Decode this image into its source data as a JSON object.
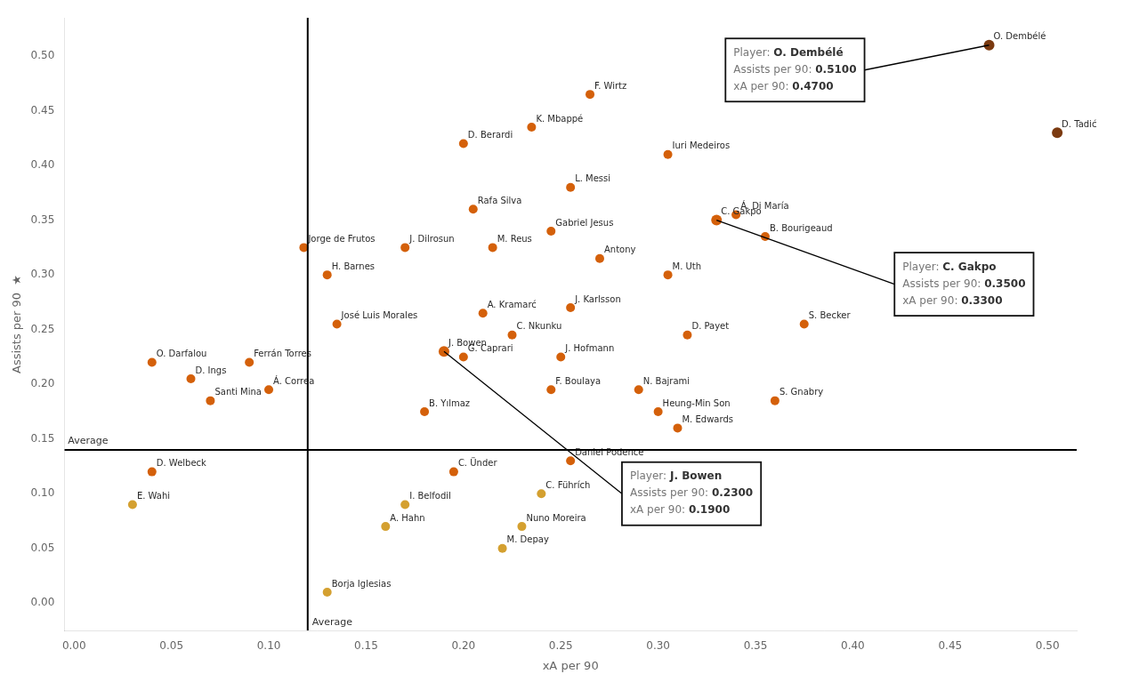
{
  "chart_data": {
    "type": "scatter",
    "xlabel": "xA per 90",
    "ylabel": "Assists per 90  ★",
    "xlim": [
      -0.005,
      0.515
    ],
    "ylim": [
      -0.025,
      0.535
    ],
    "xticks": [
      {
        "value": 0.0,
        "label": "0.00"
      },
      0.05,
      {
        "value": 0.1,
        "label": "0.10"
      },
      0.15,
      {
        "value": 0.2,
        "label": "0.20"
      },
      0.25,
      {
        "value": 0.3,
        "label": "0.30"
      },
      0.35,
      {
        "value": 0.4,
        "label": "0.40"
      },
      0.45,
      {
        "value": 0.5,
        "label": "0.50"
      }
    ],
    "yticks": [
      {
        "value": 0.0,
        "label": "0.00"
      },
      0.05,
      {
        "value": 0.1,
        "label": "0.10"
      },
      0.15,
      {
        "value": 0.2,
        "label": "0.20"
      },
      0.25,
      {
        "value": 0.3,
        "label": "0.30"
      },
      0.35,
      {
        "value": 0.4,
        "label": "0.40"
      },
      0.45,
      {
        "value": 0.5,
        "label": "0.50"
      }
    ],
    "grid": false,
    "series": [
      {
        "x": [
          0.265,
          0.235,
          0.305,
          0.2,
          0.255,
          0.205,
          0.245,
          0.118,
          0.17,
          0.215,
          0.34,
          0.355,
          0.13,
          0.27,
          0.305,
          0.135,
          0.21,
          0.255,
          0.225,
          0.2,
          0.25,
          0.04,
          0.09,
          0.06,
          0.1,
          0.07,
          0.245,
          0.29,
          0.3,
          0.36,
          0.31,
          0.375,
          0.315,
          0.18,
          0.04,
          0.03,
          0.195,
          0.255,
          0.17,
          0.24,
          0.16,
          0.23,
          0.22,
          0.13
        ],
        "values": [
          0.465,
          0.435,
          0.41,
          0.42,
          0.38,
          0.36,
          0.34,
          0.325,
          0.325,
          0.325,
          0.355,
          0.335,
          0.3,
          0.315,
          0.3,
          0.255,
          0.265,
          0.27,
          0.245,
          0.225,
          0.225,
          0.22,
          0.22,
          0.205,
          0.195,
          0.185,
          0.195,
          0.195,
          0.175,
          0.185,
          0.16,
          0.255,
          0.245,
          0.175,
          0.12,
          0.09,
          0.12,
          0.13,
          0.09,
          0.1,
          0.07,
          0.07,
          0.05,
          0.01
        ],
        "labels": [
          "F. Wirtz",
          "K. Mbappé",
          "Iuri Medeiros",
          "D. Berardi",
          "L. Messi",
          "Rafa Silva",
          "Gabriel Jesus",
          "Jorge de Frutos",
          "J. Dilrosun",
          "M. Reus",
          "Á. Di María",
          "B. Bourigeaud",
          "H. Barnes",
          "Antony",
          "M. Uth",
          "José Luis Morales",
          "A. Kramarć",
          "J. Karlsson",
          "C. Nkunku",
          "G. Caprari",
          "J. Hofmann",
          "O. Darfalou",
          "Ferrán Torres",
          "D. Ings",
          "Á. Correa",
          "Santi Mina",
          "F. Boulaya",
          "N. Bajrami",
          "Heung-Min Son",
          "S. Gnabry",
          "M. Edwards",
          "S. Becker",
          "D. Payet",
          "B. Yılmaz",
          "D. Welbeck",
          "E. Wahi",
          "C. Ünder",
          "Daniel Podence",
          "I. Belfodil",
          "C. Führích",
          "A. Hahn",
          "Nuno Moreira",
          "M. Depay",
          "Borja Iglesias"
        ],
        "colors": [
          "#d4600a",
          "#d4600a",
          "#d4600a",
          "#d4600a",
          "#d4600a",
          "#d4600a",
          "#d4600a",
          "#d4600a",
          "#d4600a",
          "#d4600a",
          "#d4600a",
          "#d4600a",
          "#d4600a",
          "#d4600a",
          "#d4600a",
          "#d4600a",
          "#d4600a",
          "#d4600a",
          "#d4600a",
          "#d4600a",
          "#d4600a",
          "#d4600a",
          "#d4600a",
          "#d4600a",
          "#d4600a",
          "#d4600a",
          "#d4600a",
          "#d4600a",
          "#d4600a",
          "#d4600a",
          "#d4600a",
          "#d4600a",
          "#d4600a",
          "#d4600a",
          "#d4600a",
          "#d4a030",
          "#d4600a",
          "#d4600a",
          "#d4a030",
          "#d4a030",
          "#d4a030",
          "#d4a030",
          "#d4a030",
          "#d4a030"
        ]
      },
      {
        "x": [
          0.47,
          0.505,
          0.33,
          0.19
        ],
        "values": [
          0.51,
          0.43,
          0.35,
          0.23
        ],
        "labels": [
          "O. Dembélé",
          "D. Tadić",
          "C. Gakpo",
          "J. Bowen"
        ],
        "colors": [
          "#7B3A10",
          "#7B3A10",
          "#d4600a",
          "#d4600a"
        ]
      }
    ],
    "reference_lines": [
      {
        "axis": "x",
        "value": 0.12,
        "label": "Average",
        "color": "black"
      },
      {
        "axis": "y",
        "value": 0.14,
        "label": "Average",
        "color": "black"
      }
    ],
    "annotations": [
      {
        "player": "O. Dembélé",
        "lines": [
          [
            "Player: ",
            "O. Dembélé"
          ],
          [
            "Assists per 90: ",
            "0.5100"
          ],
          [
            "xA per 90: ",
            "0.4700"
          ]
        ]
      },
      {
        "player": "C. Gakpo",
        "lines": [
          [
            "Player: ",
            "C. Gakpo"
          ],
          [
            "Assists per 90: ",
            "0.3500"
          ],
          [
            "xA per 90: ",
            "0.3300"
          ]
        ]
      },
      {
        "player": "J. Bowen",
        "lines": [
          [
            "Player: ",
            "J. Bowen"
          ],
          [
            "Assists per 90: ",
            "0.2300"
          ],
          [
            "xA per 90: ",
            "0.1900"
          ]
        ]
      }
    ]
  }
}
